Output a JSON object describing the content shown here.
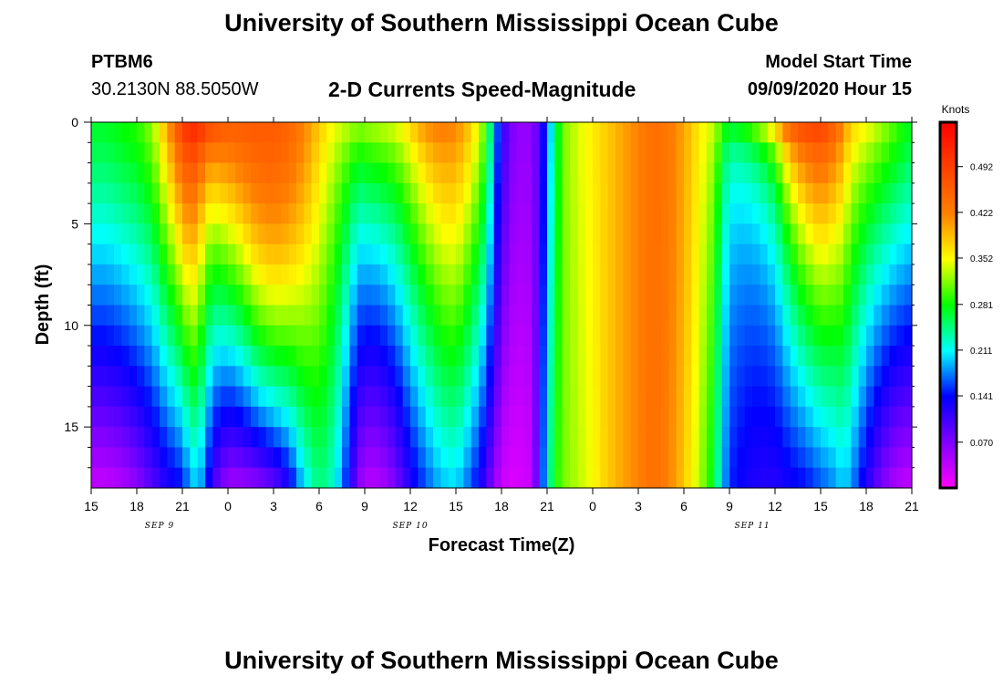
{
  "page": {
    "title_top": "University of Southern Mississippi Ocean Cube",
    "title_bottom": "University of Southern Mississippi Ocean Cube"
  },
  "header": {
    "station_id": "PTBM6",
    "station_coords": "30.2130N 88.5050W",
    "chart_title": "2-D Currents Speed-Magnitude",
    "model_start_label": "Model Start Time",
    "model_start_value": "09/09/2020 Hour 15"
  },
  "chart_data": {
    "type": "heatmap",
    "title": "2-D Currents Speed-Magnitude",
    "xlabel": "Forecast Time(Z)",
    "ylabel": "Depth (ft)",
    "colorbar_label": "Knots",
    "x_start_hour": 15,
    "x_end_hour": 69,
    "x_ticks": [
      {
        "hour": 15,
        "label": "15"
      },
      {
        "hour": 18,
        "label": "18"
      },
      {
        "hour": 21,
        "label": "21"
      },
      {
        "hour": 24,
        "label": "0"
      },
      {
        "hour": 27,
        "label": "3"
      },
      {
        "hour": 30,
        "label": "6"
      },
      {
        "hour": 33,
        "label": "9"
      },
      {
        "hour": 36,
        "label": "12"
      },
      {
        "hour": 39,
        "label": "15"
      },
      {
        "hour": 42,
        "label": "18"
      },
      {
        "hour": 45,
        "label": "21"
      },
      {
        "hour": 48,
        "label": "0"
      },
      {
        "hour": 51,
        "label": "3"
      },
      {
        "hour": 54,
        "label": "6"
      },
      {
        "hour": 57,
        "label": "9"
      },
      {
        "hour": 60,
        "label": "12"
      },
      {
        "hour": 63,
        "label": "15"
      },
      {
        "hour": 66,
        "label": "18"
      },
      {
        "hour": 69,
        "label": "21"
      }
    ],
    "date_labels": [
      {
        "hour": 19.5,
        "label": "SEP 9"
      },
      {
        "hour": 36,
        "label": "SEP 10"
      },
      {
        "hour": 58.5,
        "label": "SEP 11"
      }
    ],
    "y_range": [
      0,
      18
    ],
    "y_ticks": [
      0,
      5,
      10,
      15
    ],
    "colorbar_ticks": [
      0.492,
      0.422,
      0.352,
      0.281,
      0.211,
      0.141,
      0.07
    ],
    "color_range": [
      0,
      0.56
    ],
    "profile_hours": [
      15,
      16,
      17,
      18,
      19,
      20,
      21,
      21.5,
      22,
      22.5,
      23,
      24,
      25,
      26,
      27,
      28,
      29,
      30,
      31,
      32,
      32.5,
      33,
      34,
      35,
      36,
      37,
      38,
      39,
      40,
      41,
      41.5,
      42,
      42.5,
      43,
      44,
      44.5,
      45,
      45.5,
      46,
      47,
      48,
      49,
      50,
      51,
      52,
      53,
      54,
      55,
      56,
      56.5,
      57,
      58,
      59,
      60,
      61,
      62,
      63,
      64,
      64.5,
      65,
      66,
      67,
      68,
      69
    ],
    "surface_knots": [
      0.27,
      0.27,
      0.28,
      0.29,
      0.32,
      0.4,
      0.5,
      0.52,
      0.53,
      0.52,
      0.49,
      0.46,
      0.46,
      0.46,
      0.46,
      0.45,
      0.42,
      0.38,
      0.35,
      0.34,
      0.33,
      0.33,
      0.34,
      0.35,
      0.38,
      0.42,
      0.43,
      0.42,
      0.38,
      0.3,
      0.2,
      0.12,
      0.08,
      0.06,
      0.06,
      0.1,
      0.16,
      0.24,
      0.31,
      0.34,
      0.36,
      0.38,
      0.4,
      0.42,
      0.44,
      0.43,
      0.4,
      0.36,
      0.34,
      0.33,
      0.34,
      0.38,
      0.44,
      0.48,
      0.5,
      0.5,
      0.5,
      0.46,
      0.42,
      0.38,
      0.36,
      0.33,
      0.3,
      0.27
    ],
    "bottom_knots": [
      0.03,
      0.03,
      0.04,
      0.06,
      0.09,
      0.12,
      0.14,
      0.18,
      0.2,
      0.16,
      0.1,
      0.05,
      0.05,
      0.06,
      0.08,
      0.12,
      0.2,
      0.25,
      0.22,
      0.13,
      0.07,
      0.04,
      0.04,
      0.07,
      0.12,
      0.16,
      0.19,
      0.2,
      0.16,
      0.1,
      0.06,
      0.03,
      0.02,
      0.02,
      0.03,
      0.12,
      0.22,
      0.28,
      0.31,
      0.33,
      0.35,
      0.38,
      0.4,
      0.42,
      0.44,
      0.42,
      0.38,
      0.33,
      0.27,
      0.2,
      0.15,
      0.13,
      0.12,
      0.12,
      0.13,
      0.14,
      0.16,
      0.18,
      0.2,
      0.18,
      0.12,
      0.07,
      0.04,
      0.03
    ],
    "shape_exponent": [
      1.2,
      1.2,
      1.2,
      1.2,
      1.1,
      1.0,
      0.9,
      0.9,
      0.7,
      0.6,
      0.7,
      1.0,
      1.2,
      1.5,
      1.6,
      1.5,
      1.3,
      1.0,
      0.8,
      0.7,
      0.7,
      0.8,
      0.8,
      0.8,
      0.8,
      0.8,
      0.9,
      1.0,
      1.0,
      1.1,
      1.1,
      1.2,
      1.2,
      1.2,
      1.2,
      1.0,
      0.9,
      0.9,
      0.9,
      0.9,
      0.9,
      1.0,
      1.2,
      1.4,
      1.5,
      1.3,
      1.1,
      0.8,
      0.5,
      0.3,
      0.25,
      0.25,
      0.25,
      0.3,
      0.5,
      0.7,
      0.8,
      0.8,
      0.8,
      0.8,
      0.8,
      0.9,
      1.0,
      1.1
    ]
  }
}
